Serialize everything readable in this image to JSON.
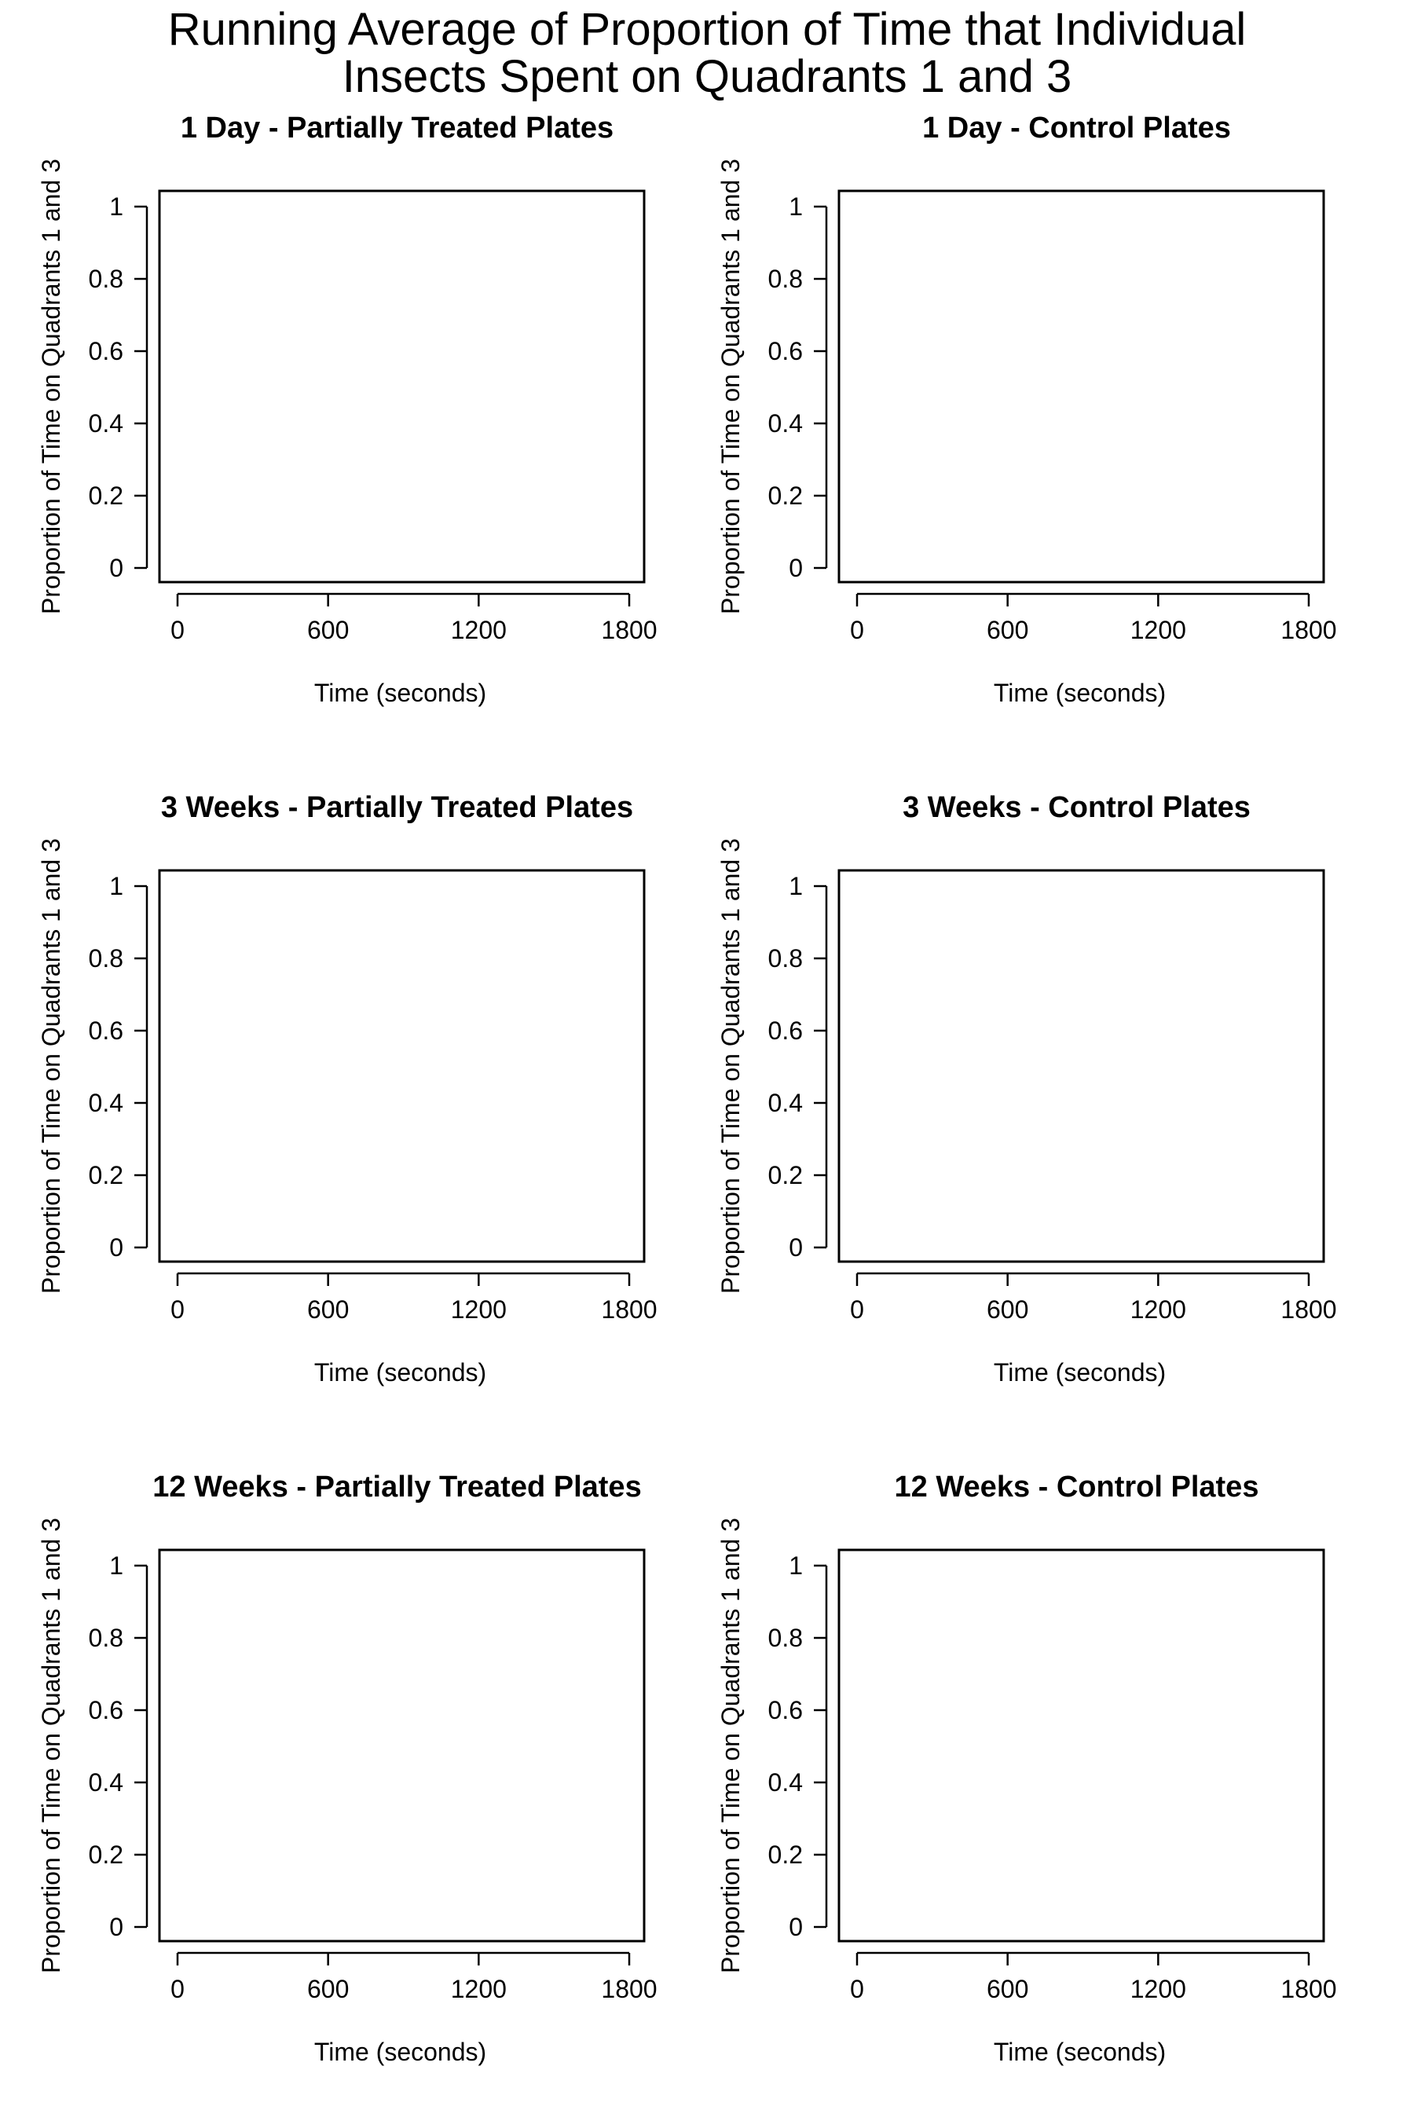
{
  "title_lines": [
    "Running Average of Proportion of Time that Individual",
    "Insects Spent on Quadrants 1 and 3"
  ],
  "chart_data": [
    {
      "type": "line",
      "title": "1 Day - Partially Treated Plates",
      "xlabel": "Time (seconds)",
      "ylabel": "Proportion of Time on Quadrants 1 and 3",
      "xlim": [
        0,
        1800
      ],
      "ylim": [
        0,
        1
      ],
      "xticks": [
        0,
        600,
        1200,
        1800
      ],
      "yticks": [
        0,
        0.2,
        0.4,
        0.6,
        0.8,
        1
      ],
      "ytick_labels": [
        "0",
        "0.2",
        "0.4",
        "0.6",
        "0.8",
        "1"
      ],
      "series": []
    },
    {
      "type": "line",
      "title": "1 Day - Control Plates",
      "xlabel": "Time (seconds)",
      "ylabel": "Proportion of Time on Quadrants 1 and 3",
      "xlim": [
        0,
        1800
      ],
      "ylim": [
        0,
        1
      ],
      "xticks": [
        0,
        600,
        1200,
        1800
      ],
      "yticks": [
        0,
        0.2,
        0.4,
        0.6,
        0.8,
        1
      ],
      "ytick_labels": [
        "0",
        "0.2",
        "0.4",
        "0.6",
        "0.8",
        "1"
      ],
      "series": []
    },
    {
      "type": "line",
      "title": "3 Weeks - Partially Treated Plates",
      "xlabel": "Time (seconds)",
      "ylabel": "Proportion of Time on Quadrants 1 and 3",
      "xlim": [
        0,
        1800
      ],
      "ylim": [
        0,
        1
      ],
      "xticks": [
        0,
        600,
        1200,
        1800
      ],
      "yticks": [
        0,
        0.2,
        0.4,
        0.6,
        0.8,
        1
      ],
      "ytick_labels": [
        "0",
        "0.2",
        "0.4",
        "0.6",
        "0.8",
        "1"
      ],
      "series": []
    },
    {
      "type": "line",
      "title": "3 Weeks - Control Plates",
      "xlabel": "Time (seconds)",
      "ylabel": "Proportion of Time on Quadrants 1 and 3",
      "xlim": [
        0,
        1800
      ],
      "ylim": [
        0,
        1
      ],
      "xticks": [
        0,
        600,
        1200,
        1800
      ],
      "yticks": [
        0,
        0.2,
        0.4,
        0.6,
        0.8,
        1
      ],
      "ytick_labels": [
        "0",
        "0.2",
        "0.4",
        "0.6",
        "0.8",
        "1"
      ],
      "series": []
    },
    {
      "type": "line",
      "title": "12 Weeks - Partially Treated Plates",
      "xlabel": "Time (seconds)",
      "ylabel": "Proportion of Time on Quadrants 1 and 3",
      "xlim": [
        0,
        1800
      ],
      "ylim": [
        0,
        1
      ],
      "xticks": [
        0,
        600,
        1200,
        1800
      ],
      "yticks": [
        0,
        0.2,
        0.4,
        0.6,
        0.8,
        1
      ],
      "ytick_labels": [
        "0",
        "0.2",
        "0.4",
        "0.6",
        "0.8",
        "1"
      ],
      "series": []
    },
    {
      "type": "line",
      "title": "12 Weeks - Control Plates",
      "xlabel": "Time (seconds)",
      "ylabel": "Proportion of Time on Quadrants 1 and 3",
      "xlim": [
        0,
        1800
      ],
      "ylim": [
        0,
        1
      ],
      "xticks": [
        0,
        600,
        1200,
        1800
      ],
      "yticks": [
        0,
        0.2,
        0.4,
        0.6,
        0.8,
        1
      ],
      "ytick_labels": [
        "0",
        "0.2",
        "0.4",
        "0.6",
        "0.8",
        "1"
      ],
      "series": []
    }
  ]
}
